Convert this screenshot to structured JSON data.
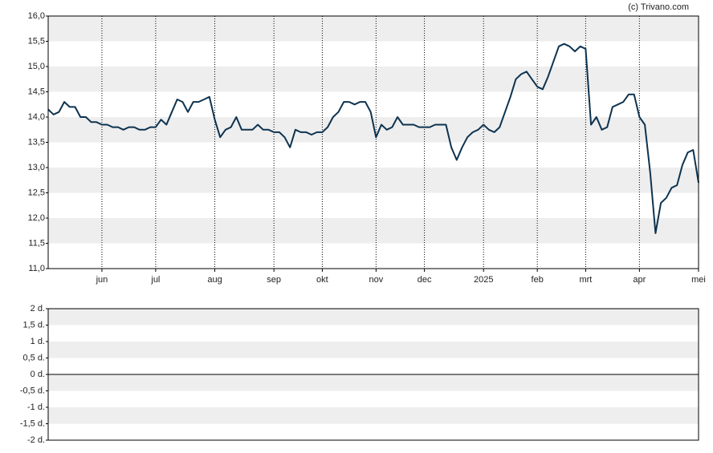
{
  "credit": "(c) Trivano.com",
  "chart_data": [
    {
      "type": "line",
      "categories": [
        null,
        null,
        null,
        null,
        null,
        null,
        null,
        null,
        null,
        null,
        "jun",
        null,
        null,
        null,
        null,
        null,
        null,
        null,
        null,
        null,
        "jul",
        null,
        null,
        null,
        null,
        null,
        null,
        null,
        null,
        null,
        null,
        "aug",
        null,
        null,
        null,
        null,
        null,
        null,
        null,
        null,
        null,
        null,
        "sep",
        null,
        null,
        null,
        null,
        null,
        null,
        null,
        null,
        "okt",
        null,
        null,
        null,
        null,
        null,
        null,
        null,
        null,
        null,
        "nov",
        null,
        null,
        null,
        null,
        null,
        null,
        null,
        null,
        "dec",
        null,
        null,
        null,
        null,
        null,
        null,
        null,
        null,
        null,
        null,
        "2025",
        null,
        null,
        null,
        null,
        null,
        null,
        null,
        null,
        null,
        "feb",
        null,
        null,
        null,
        null,
        null,
        null,
        null,
        null,
        "mrt",
        null,
        null,
        null,
        null,
        null,
        null,
        null,
        null,
        null,
        "apr",
        null,
        null,
        null,
        null,
        null,
        null,
        null,
        null,
        null,
        null,
        "mei"
      ],
      "series": [
        {
          "color": "#0d3350",
          "values": [
            14.15,
            14.05,
            14.1,
            14.3,
            14.2,
            14.2,
            14.0,
            14.0,
            13.9,
            13.9,
            13.85,
            13.85,
            13.8,
            13.8,
            13.75,
            13.8,
            13.8,
            13.75,
            13.75,
            13.8,
            13.8,
            13.95,
            13.85,
            14.1,
            14.35,
            14.3,
            14.1,
            14.3,
            14.3,
            14.35,
            14.4,
            13.95,
            13.6,
            13.75,
            13.8,
            14.0,
            13.75,
            13.75,
            13.75,
            13.85,
            13.75,
            13.75,
            13.7,
            13.7,
            13.6,
            13.4,
            13.75,
            13.7,
            13.7,
            13.65,
            13.7,
            13.7,
            13.8,
            14.0,
            14.1,
            14.3,
            14.3,
            14.25,
            14.3,
            14.3,
            14.1,
            13.6,
            13.85,
            13.75,
            13.8,
            14.0,
            13.85,
            13.85,
            13.85,
            13.8,
            13.8,
            13.8,
            13.85,
            13.85,
            13.85,
            13.4,
            13.15,
            13.4,
            13.6,
            13.7,
            13.75,
            13.85,
            13.75,
            13.7,
            13.8,
            14.1,
            14.4,
            14.75,
            14.85,
            14.9,
            14.75,
            14.6,
            14.55,
            14.8,
            15.1,
            15.4,
            15.45,
            15.4,
            15.3,
            15.4,
            15.35,
            13.85,
            14.0,
            13.75,
            13.8,
            14.2,
            14.25,
            14.3,
            14.45,
            14.45,
            14.0,
            13.85,
            12.9,
            11.7,
            12.3,
            12.4,
            12.6,
            12.65,
            13.05,
            13.3,
            13.35,
            12.7
          ]
        }
      ],
      "ylim": [
        11,
        16
      ],
      "yticks": [
        {
          "value": 11,
          "label": "11,0"
        },
        {
          "value": 11.5,
          "label": "11,5"
        },
        {
          "value": 12,
          "label": "12,0"
        },
        {
          "value": 12.5,
          "label": "12,5"
        },
        {
          "value": 13,
          "label": "13,0"
        },
        {
          "value": 13.5,
          "label": "13,5"
        },
        {
          "value": 14,
          "label": "14,0"
        },
        {
          "value": 14.5,
          "label": "14,5"
        },
        {
          "value": 15,
          "label": "15,0"
        },
        {
          "value": 15.5,
          "label": "15,5"
        },
        {
          "value": 16,
          "label": "16,0"
        }
      ],
      "grid": true
    },
    {
      "type": "empty",
      "ylim": [
        -2,
        2
      ],
      "yticks": [
        {
          "value": -2,
          "label": "-2 d."
        },
        {
          "value": -1.5,
          "label": "-1,5 d."
        },
        {
          "value": -1,
          "label": "-1 d."
        },
        {
          "value": -0.5,
          "label": "-0,5 d."
        },
        {
          "value": 0,
          "label": "0 d."
        },
        {
          "value": 0.5,
          "label": "0,5 d."
        },
        {
          "value": 1,
          "label": "1 d."
        },
        {
          "value": 1.5,
          "label": "1,5 d."
        },
        {
          "value": 2,
          "label": "2 d."
        }
      ],
      "grid": true
    }
  ]
}
